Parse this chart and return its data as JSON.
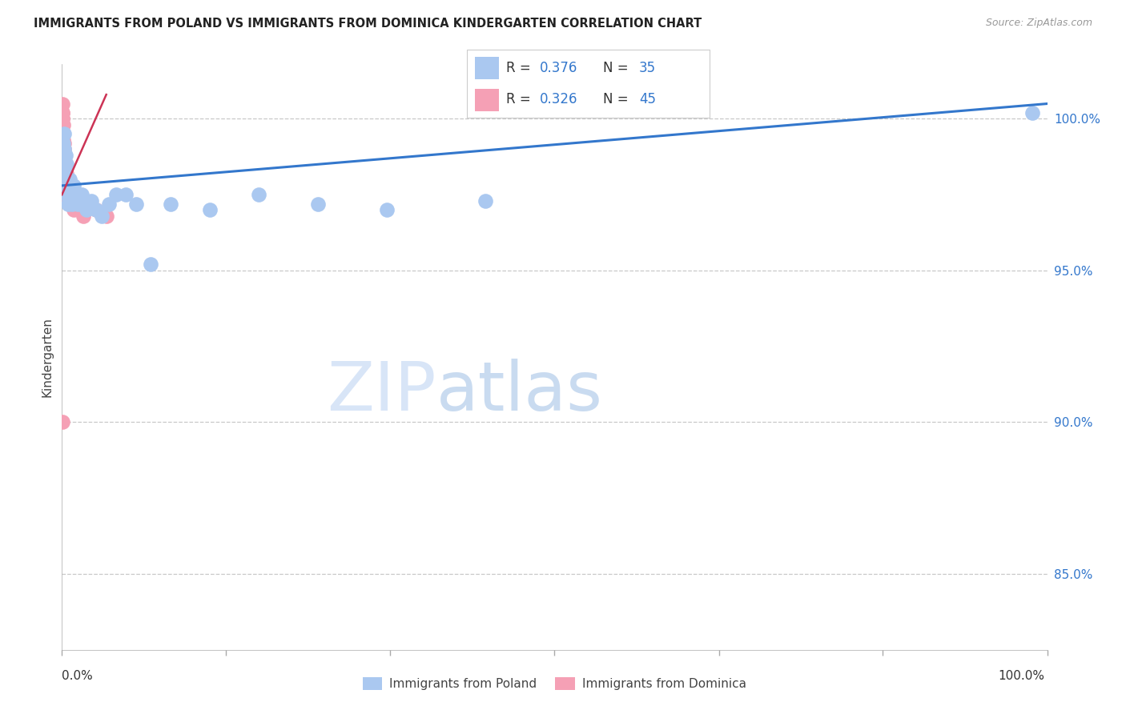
{
  "title": "IMMIGRANTS FROM POLAND VS IMMIGRANTS FROM DOMINICA KINDERGARTEN CORRELATION CHART",
  "source": "Source: ZipAtlas.com",
  "ylabel": "Kindergarten",
  "watermark_zip": "ZIP",
  "watermark_atlas": "atlas",
  "y_ticks": [
    85.0,
    90.0,
    95.0,
    100.0
  ],
  "x_min": 0.0,
  "x_max": 100.0,
  "y_min": 82.5,
  "y_max": 101.8,
  "poland_color": "#aac8f0",
  "dominica_color": "#f5a0b5",
  "poland_line_color": "#3377cc",
  "dominica_line_color": "#cc3355",
  "poland_R": "0.376",
  "poland_N": "35",
  "dominica_R": "0.326",
  "dominica_N": "45",
  "legend_text_color": "#333333",
  "legend_value_color": "#3377cc",
  "legend_N_color": "#3377cc",
  "poland_x": [
    0.1,
    0.15,
    0.2,
    0.22,
    0.25,
    0.3,
    0.35,
    0.4,
    0.45,
    0.5,
    0.6,
    0.7,
    0.8,
    0.9,
    1.0,
    1.2,
    1.4,
    1.6,
    2.0,
    2.5,
    3.0,
    3.5,
    4.0,
    4.8,
    5.5,
    6.5,
    7.5,
    9.0,
    11.0,
    15.0,
    20.0,
    26.0,
    33.0,
    43.0,
    98.5
  ],
  "poland_y": [
    98.8,
    99.2,
    99.5,
    98.5,
    99.0,
    98.2,
    97.8,
    98.8,
    97.5,
    98.5,
    97.2,
    97.8,
    98.0,
    97.5,
    97.2,
    97.8,
    97.5,
    97.2,
    97.5,
    97.0,
    97.3,
    97.0,
    96.8,
    97.2,
    97.5,
    97.5,
    97.2,
    95.2,
    97.2,
    97.0,
    97.5,
    97.2,
    97.0,
    97.3,
    100.2
  ],
  "dominica_x": [
    0.02,
    0.03,
    0.04,
    0.05,
    0.06,
    0.07,
    0.08,
    0.09,
    0.1,
    0.11,
    0.12,
    0.13,
    0.14,
    0.15,
    0.16,
    0.18,
    0.2,
    0.22,
    0.25,
    0.28,
    0.3,
    0.33,
    0.36,
    0.4,
    0.44,
    0.48,
    0.52,
    0.56,
    0.6,
    0.7,
    0.8,
    0.9,
    1.0,
    1.2,
    1.5,
    1.8,
    2.2,
    2.8,
    3.5,
    4.5,
    0.08,
    0.1,
    0.15,
    0.05,
    0.25
  ],
  "dominica_y": [
    100.2,
    100.5,
    100.0,
    99.8,
    100.2,
    99.5,
    100.0,
    99.8,
    99.5,
    99.8,
    99.3,
    99.5,
    99.2,
    99.5,
    99.0,
    99.2,
    98.8,
    99.0,
    98.5,
    98.8,
    98.5,
    98.2,
    98.5,
    98.0,
    98.2,
    97.8,
    98.0,
    97.5,
    97.8,
    97.5,
    97.8,
    97.2,
    97.5,
    97.0,
    97.2,
    97.0,
    96.8,
    97.2,
    97.0,
    96.8,
    98.5,
    97.8,
    97.5,
    90.0,
    98.2
  ],
  "poland_trend_x0": 0.0,
  "poland_trend_y0": 97.8,
  "poland_trend_x1": 100.0,
  "poland_trend_y1": 100.5,
  "dominica_trend_x0": 0.0,
  "dominica_trend_y0": 97.5,
  "dominica_trend_x1": 4.5,
  "dominica_trend_y1": 100.8,
  "x_tick_positions": [
    0,
    16.67,
    33.33,
    50.0,
    66.67,
    83.33,
    100.0
  ]
}
